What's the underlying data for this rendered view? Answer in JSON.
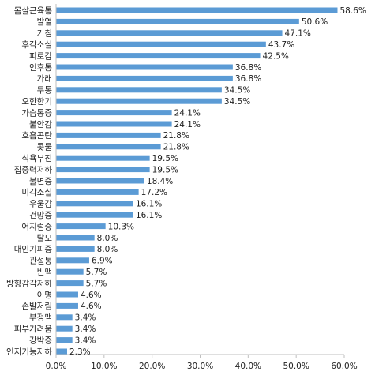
{
  "chart_data": {
    "type": "bar",
    "orientation": "horizontal",
    "categories": [
      "몸살근육통",
      "발열",
      "기침",
      "후각소실",
      "피로감",
      "인후통",
      "가래",
      "두통",
      "오한한기",
      "가슴통증",
      "불안감",
      "호흡곤란",
      "콧물",
      "식욕부진",
      "집중력저하",
      "불면증",
      "미각소실",
      "우울감",
      "건망증",
      "어지럼증",
      "탈모",
      "대인기피증",
      "관절통",
      "빈맥",
      "방향감각저하",
      "이명",
      "손발저림",
      "부정맥",
      "피부가려움",
      "강박증",
      "인지기능저하"
    ],
    "values": [
      58.6,
      50.6,
      47.1,
      43.7,
      42.5,
      36.8,
      36.8,
      34.5,
      34.5,
      24.1,
      24.1,
      21.8,
      21.8,
      19.5,
      19.5,
      18.4,
      17.2,
      16.1,
      16.1,
      10.3,
      8.0,
      8.0,
      6.9,
      5.7,
      5.7,
      4.6,
      4.6,
      3.4,
      3.4,
      3.4,
      2.3
    ],
    "value_labels": [
      "58.6%",
      "50.6%",
      "47.1%",
      "43.7%",
      "42.5%",
      "36.8%",
      "36.8%",
      "34.5%",
      "34.5%",
      "24.1%",
      "24.1%",
      "21.8%",
      "21.8%",
      "19.5%",
      "19.5%",
      "18.4%",
      "17.2%",
      "16.1%",
      "16.1%",
      "10.3%",
      "8.0%",
      "8.0%",
      "6.9%",
      "5.7%",
      "5.7%",
      "4.6%",
      "4.6%",
      "3.4%",
      "3.4%",
      "3.4%",
      "2.3%"
    ],
    "xticks": [
      "0.0%",
      "10.0%",
      "20.0%",
      "30.0%",
      "40.0%",
      "50.0%",
      "60.0%"
    ],
    "xlim": [
      0,
      60
    ],
    "grid": false,
    "bar_color": "#5B9BD5",
    "title": "",
    "xlabel": "",
    "ylabel": ""
  }
}
